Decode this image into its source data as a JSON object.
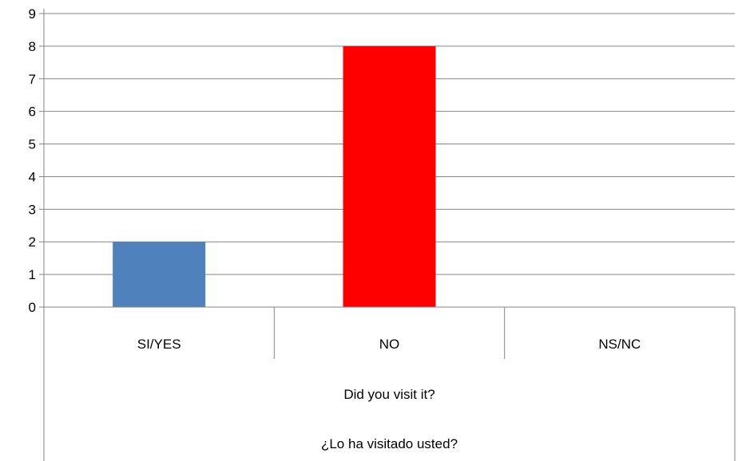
{
  "chart_data": {
    "type": "bar",
    "categories": [
      "SI/YES",
      "NO",
      "NS/NC"
    ],
    "values": [
      2,
      8,
      0
    ],
    "bar_colors": [
      "#4F81BD",
      "#FF0000",
      "#FF0000"
    ],
    "ylim": [
      0,
      9
    ],
    "yticks": [
      0,
      1,
      2,
      3,
      4,
      5,
      6,
      7,
      8,
      9
    ],
    "grid": true,
    "axis_title_lines": [
      "Did you visit it?",
      "¿Lo ha visitado usted?"
    ]
  }
}
